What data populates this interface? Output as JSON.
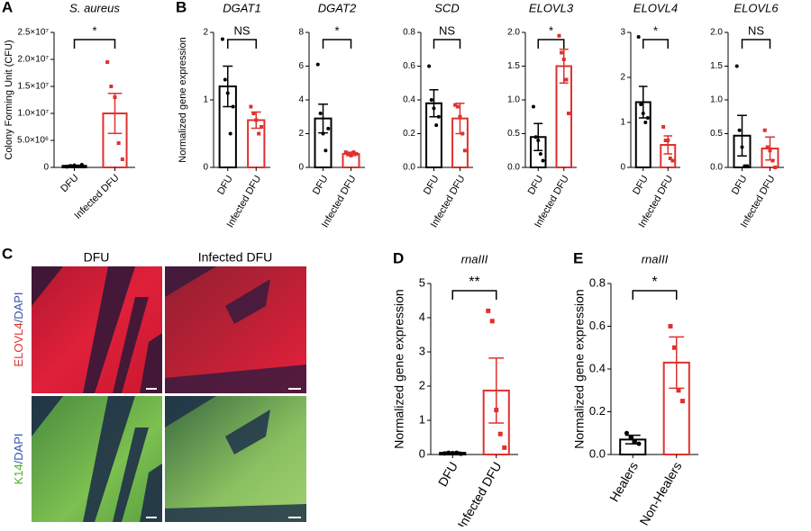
{
  "chart_data": [
    {
      "type": "bar",
      "panel": "A",
      "title": "S. aureus",
      "ylabel": "Colony Forming Unit (CFU)",
      "categories": [
        "DFU",
        "Infected DFU"
      ],
      "values": [
        300000,
        10000000
      ],
      "errors": [
        100000,
        3700000
      ],
      "points": [
        [
          100000,
          300000,
          400000,
          200000,
          500000
        ],
        [
          19500000,
          15000000,
          13000000,
          4500000,
          1500000
        ]
      ],
      "colors": [
        "#000000",
        "#e0312f"
      ],
      "markers": [
        "circle",
        "square"
      ],
      "ylim": [
        0,
        25000000
      ],
      "yticks": [
        0,
        {
          "value": 5000000,
          "label": "5.0×10⁶"
        },
        {
          "value": 10000000,
          "label": "1.0×10⁷"
        },
        {
          "value": 15000000,
          "label": "1.5×10⁷"
        },
        {
          "value": 20000000,
          "label": "2.0×10⁷"
        },
        {
          "value": 25000000,
          "label": "2.5×10⁷"
        }
      ],
      "significance": "*"
    },
    {
      "type": "bar",
      "panel": "B",
      "title": "DGAT1",
      "ylabel": "Normalized gene expression",
      "categories": [
        "DFU",
        "Infected DFU"
      ],
      "values": [
        1.2,
        0.7
      ],
      "errors": [
        0.3,
        0.12
      ],
      "points": [
        [
          1.9,
          1.3,
          1.1,
          0.5,
          0.9
        ],
        [
          0.9,
          0.8,
          0.7,
          0.5,
          0.6
        ]
      ],
      "colors": [
        "#000000",
        "#e0312f"
      ],
      "markers": [
        "circle",
        "square"
      ],
      "ylim": [
        0,
        2
      ],
      "yticks": [
        0,
        1,
        2
      ],
      "significance": "NS"
    },
    {
      "type": "bar",
      "title": "DGAT2",
      "categories": [
        "DFU",
        "Infected DFU"
      ],
      "values": [
        2.9,
        0.8
      ],
      "errors": [
        0.85,
        0.1
      ],
      "points": [
        [
          6.1,
          3.2,
          2.0,
          1.0,
          2.3
        ],
        [
          0.9,
          0.8,
          0.7,
          0.9,
          0.8
        ]
      ],
      "colors": [
        "#000000",
        "#e0312f"
      ],
      "markers": [
        "circle",
        "square"
      ],
      "ylim": [
        0,
        8
      ],
      "yticks": [
        0,
        2,
        4,
        6,
        8
      ],
      "significance": "*"
    },
    {
      "type": "bar",
      "title": "SCD",
      "categories": [
        "DFU",
        "Infected DFU"
      ],
      "values": [
        0.38,
        0.29
      ],
      "errors": [
        0.08,
        0.09
      ],
      "points": [
        [
          0.6,
          0.4,
          0.35,
          0.25,
          0.3
        ],
        [
          0.37,
          0.36,
          0.3,
          0.2,
          0.1
        ]
      ],
      "colors": [
        "#000000",
        "#e0312f"
      ],
      "markers": [
        "circle",
        "square"
      ],
      "ylim": [
        0,
        0.8
      ],
      "yticks": [
        {
          "value": 0,
          "label": "0.0"
        },
        0.2,
        0.4,
        0.6,
        0.8
      ],
      "significance": "NS"
    },
    {
      "type": "bar",
      "title": "ELOVL3",
      "categories": [
        "DFU",
        "Infected DFU"
      ],
      "values": [
        0.45,
        1.5
      ],
      "errors": [
        0.2,
        0.25
      ],
      "points": [
        [
          0.9,
          0.45,
          0.4,
          0.2,
          0.1
        ],
        [
          1.95,
          1.7,
          1.6,
          1.3,
          0.8
        ]
      ],
      "colors": [
        "#000000",
        "#e0312f"
      ],
      "markers": [
        "circle",
        "square"
      ],
      "ylim": [
        0,
        2
      ],
      "yticks": [
        {
          "value": 0,
          "label": "0.0"
        },
        0.5,
        {
          "value": 1,
          "label": "1.0"
        },
        1.5,
        {
          "value": 2,
          "label": "2.0"
        }
      ],
      "significance": "*"
    },
    {
      "type": "bar",
      "title": "ELOVL4",
      "categories": [
        "DFU",
        "Infected DFU"
      ],
      "values": [
        1.45,
        0.5
      ],
      "errors": [
        0.35,
        0.2
      ],
      "points": [
        [
          2.9,
          1.4,
          1.2,
          1.0,
          1.1
        ],
        [
          0.9,
          0.6,
          0.6,
          0.2,
          0.15
        ]
      ],
      "colors": [
        "#000000",
        "#e0312f"
      ],
      "markers": [
        "circle",
        "square"
      ],
      "ylim": [
        0,
        3
      ],
      "yticks": [
        0,
        1,
        2,
        3
      ],
      "significance": "*"
    },
    {
      "type": "bar",
      "title": "ELOVL6",
      "categories": [
        "DFU",
        "Infected DFU"
      ],
      "values": [
        0.47,
        0.28
      ],
      "errors": [
        0.3,
        0.17
      ],
      "points": [
        [
          1.5,
          0.55,
          0.3,
          0.02,
          0.02
        ],
        [
          0.55,
          0.3,
          0.25,
          0.1,
          0
        ]
      ],
      "colors": [
        "#000000",
        "#e0312f"
      ],
      "markers": [
        "circle",
        "square"
      ],
      "ylim": [
        0,
        2
      ],
      "yticks": [
        {
          "value": 0,
          "label": "0.0"
        },
        0.5,
        {
          "value": 1,
          "label": "1.0"
        },
        1.5,
        {
          "value": 2,
          "label": "2.0"
        }
      ],
      "significance": "NS"
    },
    {
      "type": "bar",
      "panel": "D",
      "title": "rnaIII",
      "ylabel": "Normalized gene expression",
      "categories": [
        "DFU",
        "Infected DFU"
      ],
      "values": [
        0.05,
        1.87
      ],
      "errors": [
        0.02,
        0.95
      ],
      "points": [
        [
          0.03,
          0.05,
          0.04,
          0.05,
          0.02
        ],
        [
          4.2,
          3.9,
          1.3,
          0.6,
          0.2
        ]
      ],
      "colors": [
        "#000000",
        "#e0312f"
      ],
      "markers": [
        "circle",
        "square"
      ],
      "ylim": [
        0,
        5
      ],
      "yticks": [
        0,
        1,
        2,
        3,
        4,
        5
      ],
      "significance": "**"
    },
    {
      "type": "bar",
      "panel": "E",
      "title": "rnaIII",
      "ylabel": "Normalized gene expression",
      "categories": [
        "Healers",
        "Non-Healers"
      ],
      "values": [
        0.07,
        0.43
      ],
      "errors": [
        0.02,
        0.12
      ],
      "points": [
        [
          0.1,
          0.08,
          0.06,
          0.05
        ],
        [
          0.6,
          0.5,
          0.3,
          0.25
        ]
      ],
      "colors": [
        "#000000",
        "#e0312f"
      ],
      "markers": [
        "circle",
        "square"
      ],
      "ylim": [
        0,
        0.8
      ],
      "yticks": [
        {
          "value": 0,
          "label": "0.0"
        },
        0.2,
        0.4,
        0.6,
        0.8
      ],
      "significance": "*"
    }
  ],
  "panel_c": {
    "panel": "C",
    "columns": [
      "DFU",
      "Infected DFU"
    ],
    "rows": [
      {
        "stain": "ELOVL4",
        "counterstain": "/DAPI"
      },
      {
        "stain": "K14",
        "counterstain": "/DAPI"
      }
    ]
  }
}
